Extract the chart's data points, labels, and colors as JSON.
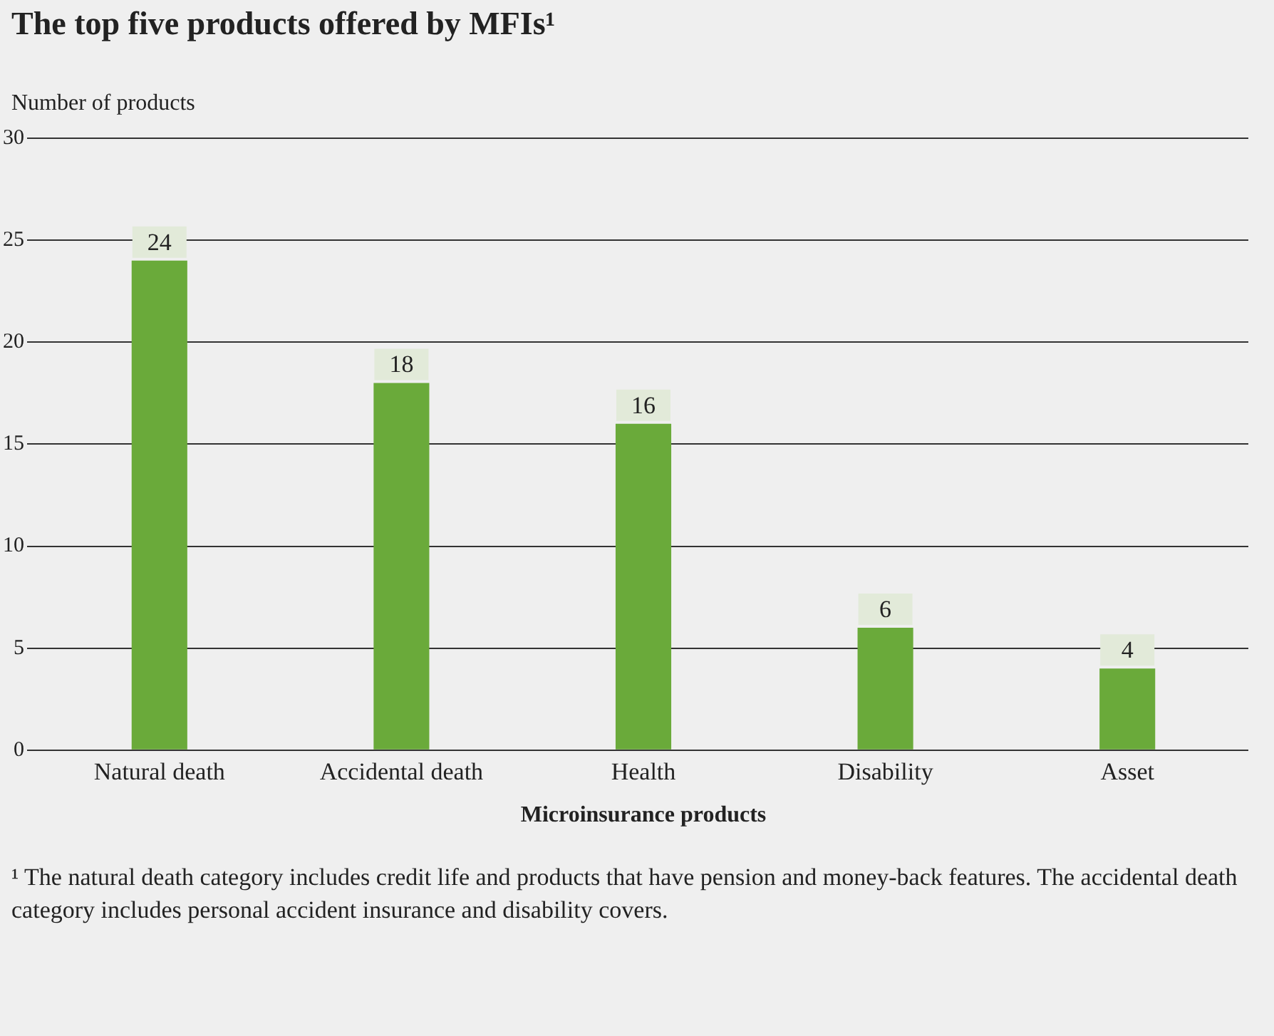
{
  "chart_data": {
    "type": "bar",
    "title": "The top five products offered by MFIs¹",
    "ylabel": "Number of products",
    "xlabel": "Microinsurance products",
    "categories": [
      "Natural death",
      "Accidental death",
      "Health",
      "Disability",
      "Asset"
    ],
    "values": [
      24,
      18,
      16,
      6,
      4
    ],
    "color": "#6aaa3a",
    "ylim": [
      0,
      30
    ],
    "yticks": [
      0,
      5,
      10,
      15,
      20,
      25,
      30
    ],
    "grid": "y",
    "legend": false,
    "data_labels": true,
    "annotations": [
      "¹ The natural death category includes credit life and products that have pension and money-back features. The accidental death category includes personal accident insurance and disability covers."
    ]
  }
}
